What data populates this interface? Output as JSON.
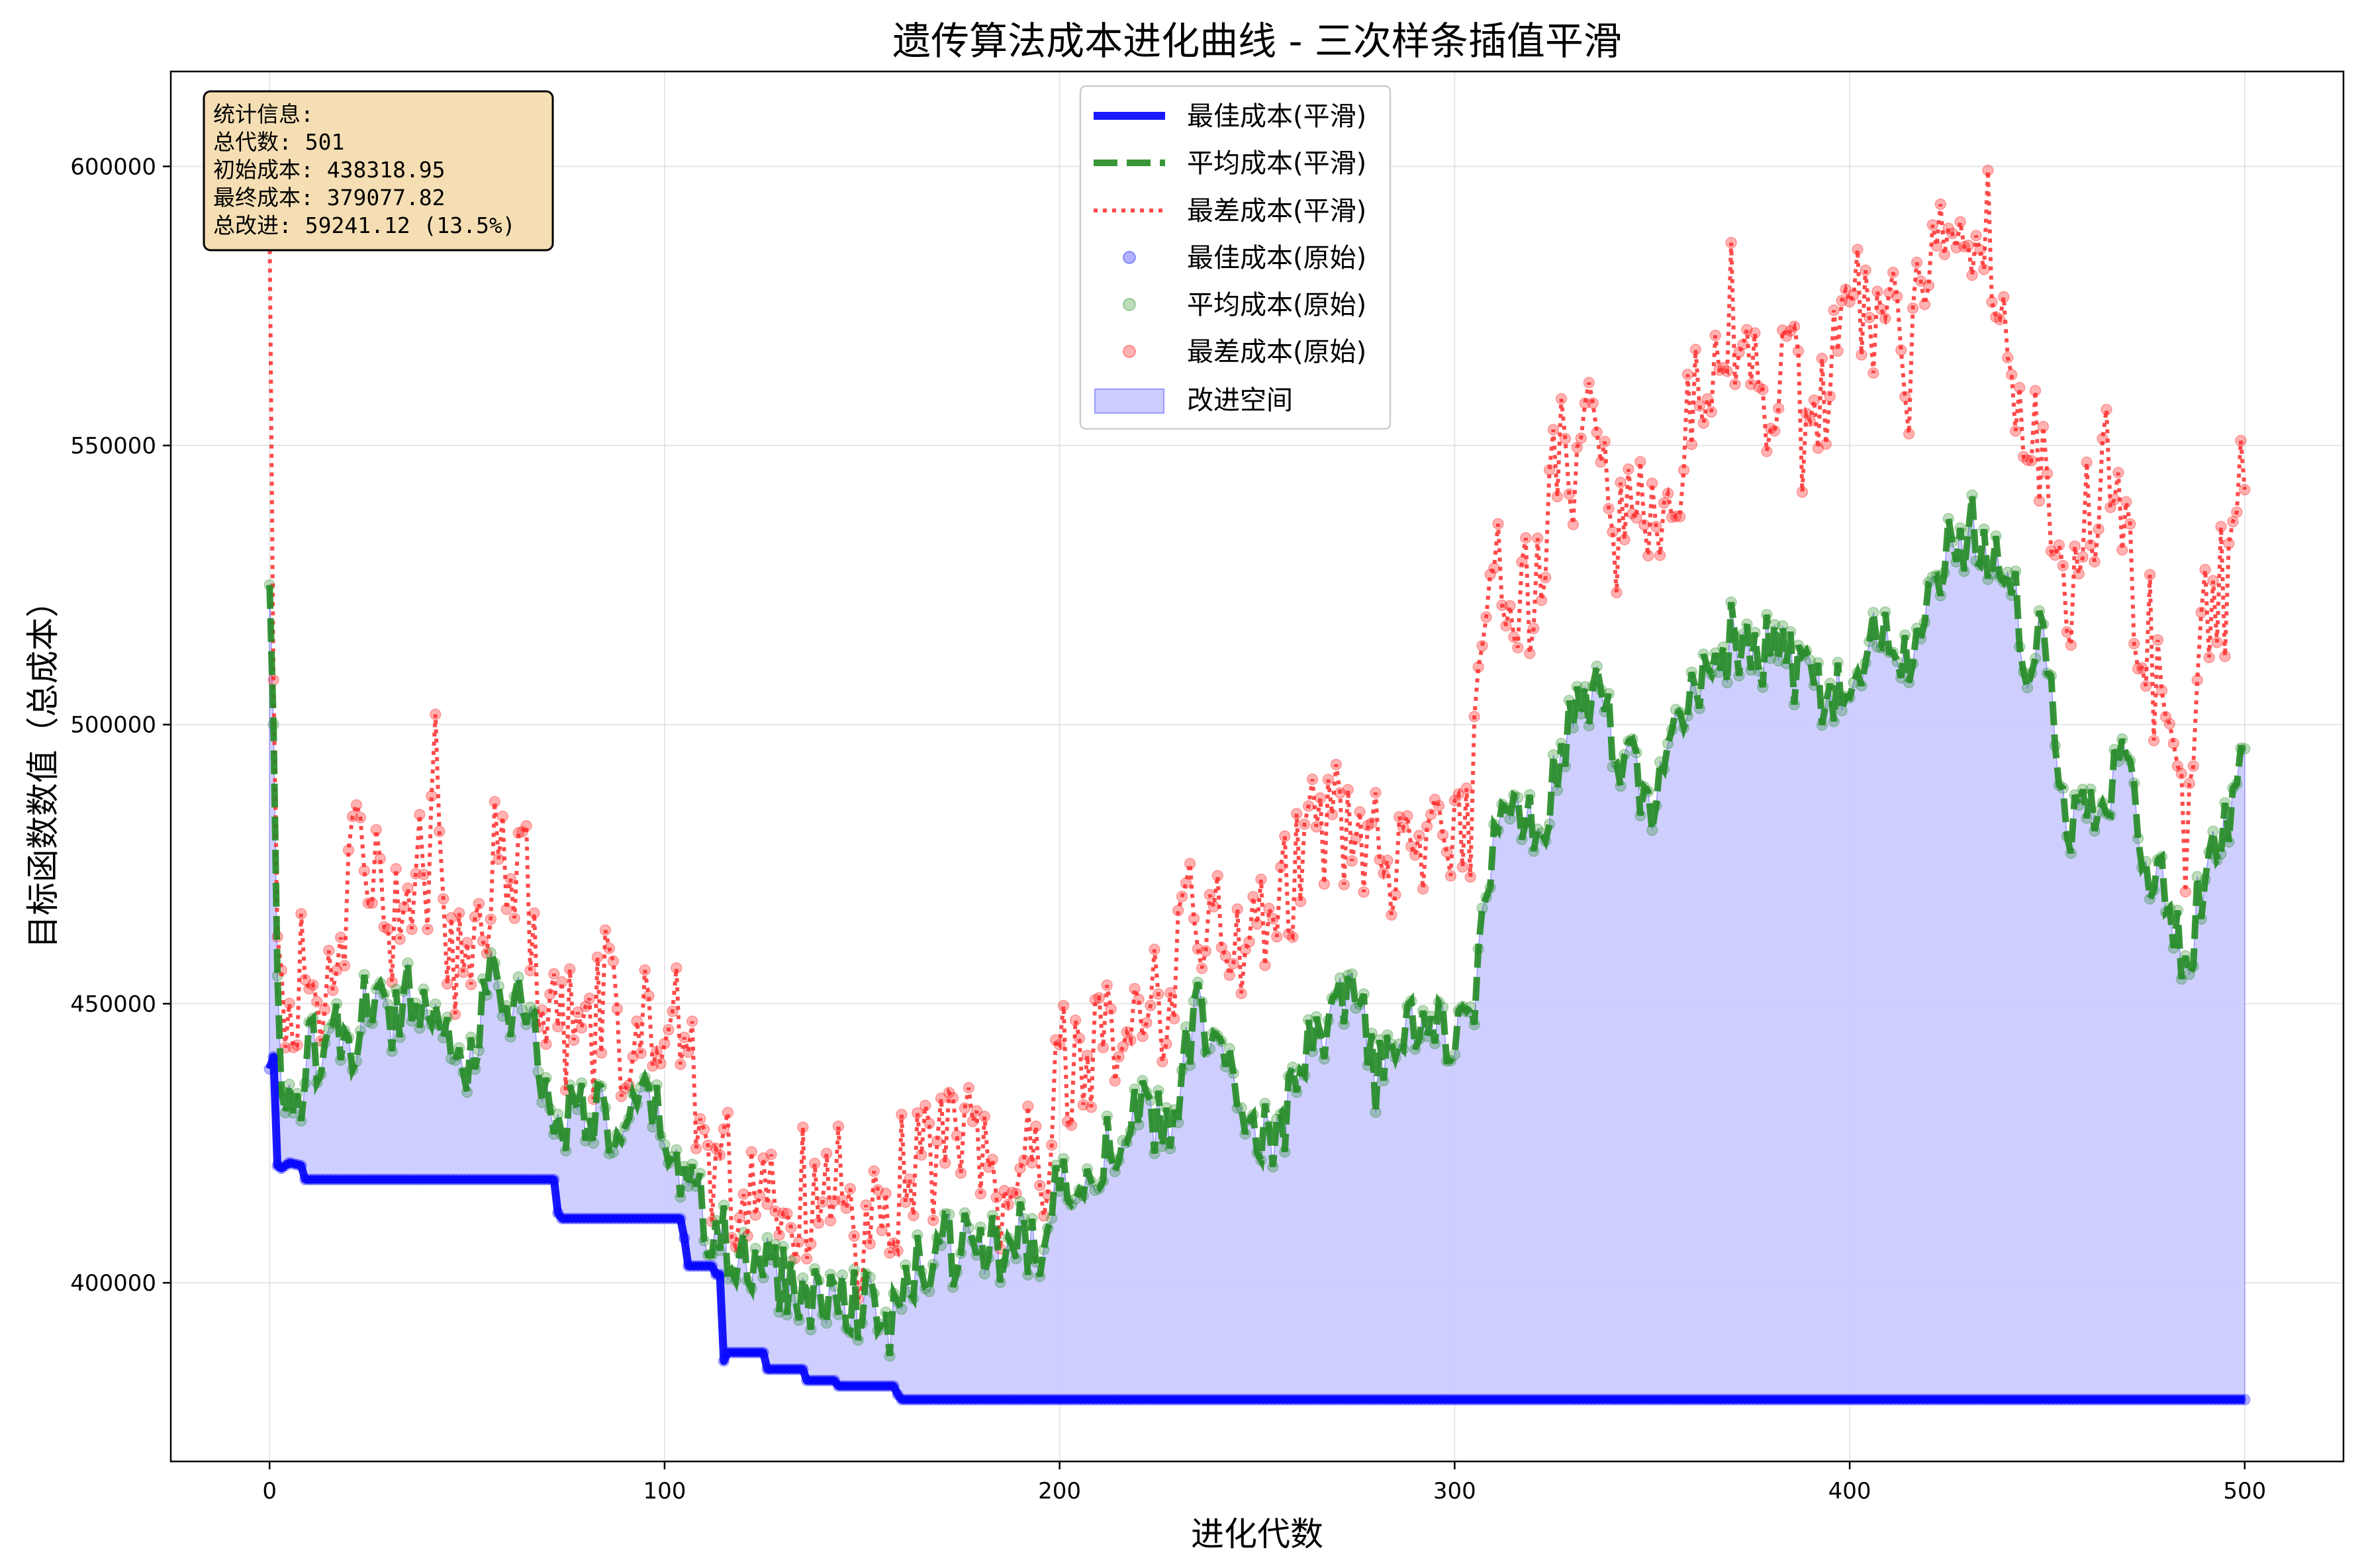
{
  "chart_data": {
    "type": "line",
    "title": "遗传算法成本进化曲线 - 三次样条插值平滑",
    "xlabel": "进化代数",
    "ylabel": "目标函数数值（总成本）",
    "xlim": [
      -25,
      525
    ],
    "ylim": [
      368000,
      617000
    ],
    "xticks": [
      0,
      100,
      200,
      300,
      400,
      500
    ],
    "yticks": [
      400000,
      450000,
      500000,
      550000,
      600000
    ],
    "grid": true,
    "legend_position": "top-center",
    "colors": {
      "best": "#0000ff",
      "avg": "#228b22",
      "worst": "#ff2a2a",
      "fill": "#ccccff",
      "stats_bg": "#f5deb3"
    },
    "legend": [
      {
        "key": "best_smooth",
        "label": "最佳成本(平滑)"
      },
      {
        "key": "avg_smooth",
        "label": "平均成本(平滑)"
      },
      {
        "key": "worst_smooth",
        "label": "最差成本(平滑)"
      },
      {
        "key": "best_raw",
        "label": "最佳成本(原始)"
      },
      {
        "key": "avg_raw",
        "label": "平均成本(原始)"
      },
      {
        "key": "worst_raw",
        "label": "最差成本(原始)"
      },
      {
        "key": "fill",
        "label": "改进空间"
      }
    ],
    "stats_box": {
      "lines": [
        "统计信息:",
        "总代数: 501",
        "初始成本: 438318.95",
        "最终成本: 379077.82",
        "总改进: 59241.12 (13.5%)"
      ]
    },
    "series": [
      {
        "name": "最佳成本",
        "x": [
          0,
          1,
          2,
          3,
          5,
          8,
          9,
          40,
          72,
          73,
          74,
          104,
          105,
          106,
          107,
          112,
          113,
          114,
          115,
          116,
          117,
          125,
          126,
          135,
          136,
          143,
          144,
          158,
          159,
          160,
          200,
          300,
          400,
          500
        ],
        "y": [
          438319,
          440500,
          421000,
          420500,
          421500,
          421000,
          418500,
          418500,
          418500,
          412500,
          411500,
          411500,
          408000,
          403000,
          403000,
          403000,
          401500,
          401500,
          386000,
          387500,
          387500,
          387500,
          384500,
          384500,
          382500,
          382500,
          381500,
          381500,
          380000,
          379078,
          379078,
          379078,
          379078,
          379078
        ]
      },
      {
        "name": "平均成本",
        "x": [
          0,
          1,
          2,
          3,
          5,
          8,
          10,
          15,
          20,
          25,
          30,
          35,
          40,
          42,
          45,
          50,
          55,
          58,
          60,
          65,
          70,
          75,
          80,
          85,
          90,
          95,
          100,
          105,
          108,
          112,
          115,
          118,
          120,
          125,
          130,
          135,
          140,
          145,
          150,
          155,
          158,
          160,
          165,
          170,
          175,
          180,
          185,
          190,
          195,
          200,
          205,
          210,
          215,
          220,
          225,
          230,
          235,
          240,
          245,
          250,
          255,
          260,
          265,
          270,
          275,
          280,
          285,
          290,
          295,
          300,
          303,
          305,
          310,
          315,
          320,
          325,
          330,
          335,
          340,
          345,
          350,
          355,
          360,
          365,
          370,
          375,
          380,
          385,
          390,
          395,
          400,
          405,
          410,
          415,
          420,
          425,
          430,
          435,
          440,
          445,
          450,
          455,
          460,
          465,
          470,
          475,
          480,
          483,
          485,
          490,
          495,
          500
        ],
        "y": [
          525000,
          500000,
          455000,
          432000,
          437000,
          425000,
          440000,
          447000,
          438000,
          452000,
          446000,
          453000,
          449000,
          456000,
          445000,
          438000,
          452000,
          456000,
          445000,
          453000,
          432000,
          430000,
          432000,
          428000,
          425000,
          432000,
          428000,
          415000,
          422000,
          405000,
          408000,
          403000,
          402000,
          405000,
          400000,
          398000,
          396000,
          399000,
          396000,
          393000,
          392000,
          397000,
          403000,
          407000,
          405000,
          409000,
          403000,
          408000,
          404000,
          419000,
          420000,
          423000,
          426000,
          430000,
          428000,
          431000,
          452000,
          440000,
          434000,
          430000,
          424000,
          436000,
          443000,
          447000,
          451000,
          436000,
          442000,
          448000,
          444000,
          445000,
          450000,
          452000,
          480000,
          485000,
          480000,
          490000,
          500000,
          506000,
          497000,
          492000,
          483000,
          497000,
          505000,
          512000,
          515000,
          512000,
          513000,
          510000,
          508000,
          504000,
          505000,
          515000,
          514000,
          513000,
          520000,
          530000,
          535000,
          532000,
          530000,
          512000,
          515000,
          482000,
          485000,
          490000,
          493000,
          477000,
          470000,
          465000,
          455000,
          473000,
          481000,
          500500
        ]
      },
      {
        "name": "最差成本",
        "x": [
          0,
          1,
          2,
          3,
          5,
          8,
          10,
          15,
          20,
          25,
          30,
          35,
          40,
          42,
          45,
          50,
          55,
          58,
          60,
          65,
          70,
          75,
          80,
          85,
          90,
          95,
          100,
          105,
          108,
          112,
          115,
          118,
          120,
          125,
          130,
          135,
          140,
          145,
          150,
          155,
          158,
          160,
          165,
          170,
          175,
          180,
          185,
          190,
          195,
          200,
          205,
          210,
          215,
          220,
          225,
          230,
          233,
          235,
          240,
          245,
          250,
          255,
          260,
          265,
          270,
          275,
          280,
          285,
          290,
          295,
          300,
          303,
          305,
          310,
          315,
          320,
          325,
          330,
          335,
          340,
          345,
          350,
          355,
          360,
          365,
          370,
          375,
          380,
          385,
          390,
          395,
          400,
          405,
          410,
          415,
          420,
          425,
          430,
          435,
          440,
          445,
          450,
          455,
          460,
          465,
          470,
          475,
          480,
          483,
          485,
          490,
          495,
          500
        ],
        "y": [
          590000,
          508000,
          462000,
          445000,
          440000,
          458000,
          447000,
          450000,
          472000,
          480000,
          465000,
          468000,
          474000,
          499000,
          458000,
          465000,
          470000,
          478000,
          467000,
          472000,
          445000,
          445000,
          438000,
          452000,
          440000,
          447000,
          437000,
          453000,
          433000,
          416000,
          430000,
          410000,
          418000,
          420000,
          412000,
          416000,
          408000,
          420000,
          405000,
          410000,
          401000,
          418000,
          418000,
          425000,
          426000,
          420000,
          415000,
          420000,
          418000,
          440000,
          442000,
          445000,
          446000,
          450000,
          448000,
          455000,
          486000,
          460000,
          462000,
          458000,
          466000,
          470000,
          476000,
          478000,
          486000,
          478000,
          482000,
          470000,
          478000,
          475000,
          475000,
          478000,
          490000,
          530000,
          525000,
          519000,
          545000,
          548000,
          555000,
          530000,
          534000,
          535000,
          540000,
          558000,
          560000,
          575000,
          560000,
          552000,
          562000,
          548000,
          560000,
          572000,
          575000,
          569000,
          565000,
          580000,
          595000,
          585000,
          588000,
          570000,
          553000,
          538000,
          525000,
          535000,
          550000,
          530000,
          518000,
          498000,
          499000,
          482000,
          520000,
          525000,
          555000
        ]
      }
    ]
  }
}
